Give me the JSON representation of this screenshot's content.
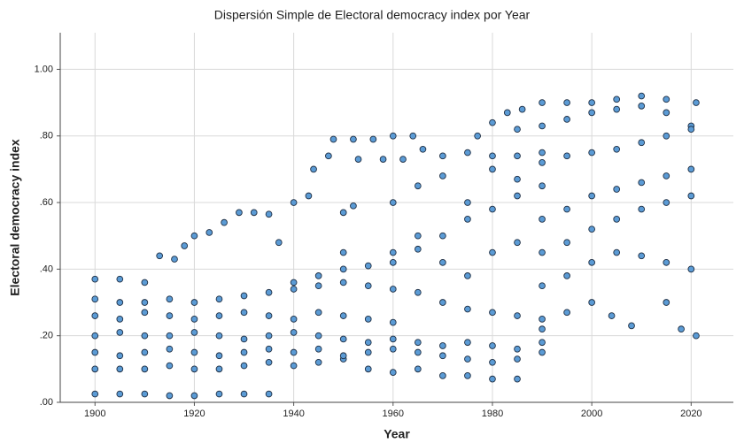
{
  "chart_data": {
    "type": "scatter",
    "title": "Dispersión Simple de Electoral democracy index por Year",
    "x_label": "Year",
    "y_label": "Electoral democracy index",
    "color": "#5b9bd5",
    "edge_color": "#1f2f44",
    "grid": true,
    "xlim": [
      1893,
      2028.5
    ],
    "xticks": [
      1900,
      1920,
      1940,
      1960,
      1980,
      2000,
      2020
    ],
    "ylim": [
      0,
      1.11
    ],
    "yticks": [
      {
        "value": 0,
        "label": ".00"
      },
      {
        "value": 0.2,
        "label": ".20"
      },
      {
        "value": 0.4,
        "label": ".40"
      },
      {
        "value": 0.6,
        "label": ".60"
      },
      {
        "value": 0.8,
        "label": ".80"
      },
      {
        "value": 1,
        "label": "1.00"
      }
    ],
    "x": [
      1900,
      1905,
      1910,
      1915,
      1920,
      1925,
      1930,
      1935,
      1900,
      1905,
      1910,
      1915,
      1920,
      1925,
      1930,
      1935,
      1940,
      1945,
      1950,
      1955,
      1960,
      1965,
      1970,
      1975,
      1980,
      1985,
      1900,
      1905,
      1910,
      1915,
      1920,
      1925,
      1930,
      1935,
      1940,
      1945,
      1950,
      1955,
      1960,
      1965,
      1970,
      1975,
      1980,
      1985,
      1990,
      1900,
      1905,
      1910,
      1915,
      1920,
      1925,
      1930,
      1935,
      1940,
      1945,
      1950,
      1955,
      1960,
      1965,
      1970,
      1975,
      1980,
      1985,
      1990,
      1900,
      1905,
      1910,
      1915,
      1920,
      1925,
      1930,
      1935,
      1940,
      1945,
      1950,
      1955,
      1960,
      1900,
      1905,
      1910,
      1915,
      1920,
      1925,
      1930,
      1935,
      1940,
      1945,
      1950,
      1955,
      1960,
      1965,
      1970,
      1975,
      1980,
      1985,
      1990,
      1900,
      1905,
      1910,
      1913,
      1916,
      1918,
      1920,
      1923,
      1926,
      1929,
      1932,
      1935,
      1940,
      1943,
      1944,
      1947,
      1948,
      1952,
      1956,
      1960,
      1964,
      1953,
      1958,
      1962,
      1966,
      1970,
      1975,
      1980,
      1985,
      1990,
      1940,
      1945,
      1950,
      1955,
      1960,
      1965,
      1970,
      1975,
      1980,
      1985,
      1990,
      1977,
      1980,
      1983,
      1986,
      1990,
      1995,
      2000,
      2005,
      2010,
      2015,
      2021,
      1985,
      1990,
      1995,
      2000,
      2005,
      2010,
      2015,
      2020,
      1990,
      1995,
      2000,
      2005,
      2010,
      2015,
      2020,
      1990,
      1995,
      2000,
      2005,
      2010,
      2015,
      2020,
      1990,
      1995,
      2000,
      2005,
      2010,
      2015,
      2020,
      1990,
      1995,
      2000,
      2005,
      2010,
      2015,
      2020,
      1990,
      1995,
      2000,
      2004,
      2008,
      2015,
      2018,
      2021,
      1960,
      1965,
      1970,
      1975,
      1980,
      1985,
      1960,
      1965,
      1970,
      1975,
      1980,
      1985,
      1937,
      1950,
      1950,
      1952
    ],
    "y": [
      0.025,
      0.025,
      0.025,
      0.02,
      0.02,
      0.025,
      0.025,
      0.025,
      0.1,
      0.1,
      0.1,
      0.11,
      0.1,
      0.1,
      0.11,
      0.12,
      0.11,
      0.12,
      0.13,
      0.1,
      0.09,
      0.1,
      0.08,
      0.08,
      0.07,
      0.07,
      0.15,
      0.14,
      0.15,
      0.16,
      0.15,
      0.14,
      0.15,
      0.16,
      0.15,
      0.16,
      0.14,
      0.15,
      0.16,
      0.15,
      0.14,
      0.13,
      0.12,
      0.13,
      0.15,
      0.2,
      0.21,
      0.2,
      0.2,
      0.21,
      0.2,
      0.19,
      0.2,
      0.21,
      0.2,
      0.19,
      0.18,
      0.19,
      0.18,
      0.17,
      0.18,
      0.17,
      0.16,
      0.18,
      0.26,
      0.25,
      0.27,
      0.26,
      0.25,
      0.26,
      0.27,
      0.26,
      0.25,
      0.27,
      0.26,
      0.25,
      0.24,
      0.31,
      0.3,
      0.3,
      0.31,
      0.3,
      0.31,
      0.32,
      0.33,
      0.34,
      0.35,
      0.36,
      0.35,
      0.34,
      0.33,
      0.3,
      0.28,
      0.27,
      0.26,
      0.25,
      0.37,
      0.37,
      0.36,
      0.44,
      0.43,
      0.47,
      0.5,
      0.51,
      0.54,
      0.57,
      0.57,
      0.565,
      0.6,
      0.62,
      0.7,
      0.74,
      0.79,
      0.79,
      0.79,
      0.8,
      0.8,
      0.73,
      0.73,
      0.73,
      0.76,
      0.74,
      0.75,
      0.74,
      0.74,
      0.75,
      0.36,
      0.38,
      0.4,
      0.41,
      0.42,
      0.46,
      0.5,
      0.55,
      0.58,
      0.62,
      0.65,
      0.8,
      0.84,
      0.87,
      0.88,
      0.9,
      0.9,
      0.9,
      0.91,
      0.92,
      0.91,
      0.9,
      0.82,
      0.83,
      0.85,
      0.87,
      0.88,
      0.89,
      0.87,
      0.83,
      0.72,
      0.74,
      0.75,
      0.76,
      0.78,
      0.8,
      0.82,
      0.55,
      0.58,
      0.62,
      0.64,
      0.66,
      0.68,
      0.7,
      0.45,
      0.48,
      0.52,
      0.55,
      0.58,
      0.6,
      0.62,
      0.35,
      0.38,
      0.42,
      0.45,
      0.44,
      0.42,
      0.4,
      0.22,
      0.27,
      0.3,
      0.26,
      0.23,
      0.3,
      0.22,
      0.2,
      0.6,
      0.65,
      0.68,
      0.6,
      0.7,
      0.67,
      0.45,
      0.5,
      0.42,
      0.38,
      0.45,
      0.48,
      0.48,
      0.45,
      0.57,
      0.59
    ]
  }
}
